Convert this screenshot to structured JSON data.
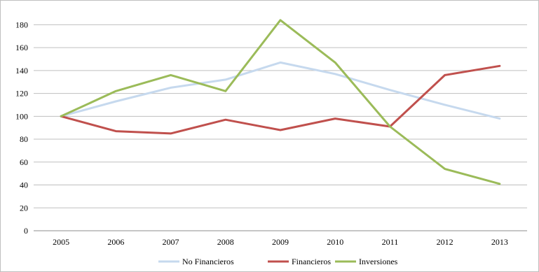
{
  "chart_data": {
    "type": "line",
    "categories": [
      "2005",
      "2006",
      "2007",
      "2008",
      "2009",
      "2010",
      "2011",
      "2012",
      "2013"
    ],
    "series": [
      {
        "name": "No Financieros",
        "color": "#c6d9ee",
        "values": [
          100,
          113,
          125,
          132,
          147,
          137,
          123,
          110,
          98
        ]
      },
      {
        "name": "Financieros",
        "color": "#c0504d",
        "values": [
          100,
          87,
          85,
          97,
          88,
          98,
          91,
          136,
          144
        ]
      },
      {
        "name": "Inversiones",
        "color": "#9bbb59",
        "values": [
          100,
          122,
          136,
          122,
          184,
          147,
          91,
          54,
          41
        ]
      }
    ],
    "y_ticks": [
      "0",
      "20",
      "40",
      "60",
      "80",
      "100",
      "120",
      "140",
      "160",
      "180"
    ],
    "ylim": [
      0,
      190
    ],
    "grid": true,
    "legend_position": "bottom",
    "title": "",
    "xlabel": "",
    "ylabel": ""
  }
}
